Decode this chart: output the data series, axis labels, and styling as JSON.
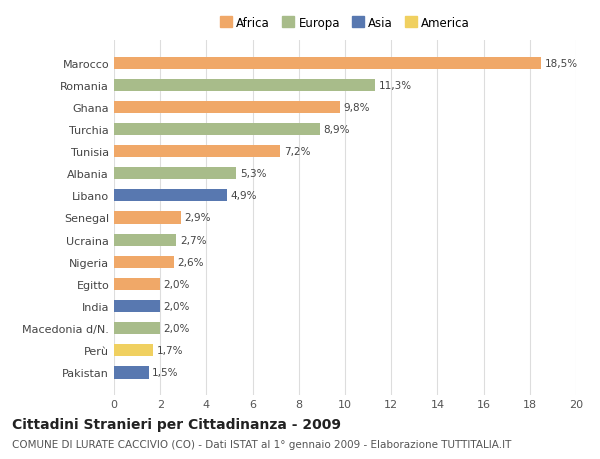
{
  "categories": [
    "Marocco",
    "Romania",
    "Ghana",
    "Turchia",
    "Tunisia",
    "Albania",
    "Libano",
    "Senegal",
    "Ucraina",
    "Nigeria",
    "Egitto",
    "India",
    "Macedonia d/N.",
    "Perù",
    "Pakistan"
  ],
  "values": [
    18.5,
    11.3,
    9.8,
    8.9,
    7.2,
    5.3,
    4.9,
    2.9,
    2.7,
    2.6,
    2.0,
    2.0,
    2.0,
    1.7,
    1.5
  ],
  "continents": [
    "Africa",
    "Europa",
    "Africa",
    "Europa",
    "Africa",
    "Europa",
    "Asia",
    "Africa",
    "Europa",
    "Africa",
    "Africa",
    "Asia",
    "Europa",
    "America",
    "Asia"
  ],
  "labels": [
    "18,5%",
    "11,3%",
    "9,8%",
    "8,9%",
    "7,2%",
    "5,3%",
    "4,9%",
    "2,9%",
    "2,7%",
    "2,6%",
    "2,0%",
    "2,0%",
    "2,0%",
    "1,7%",
    "1,5%"
  ],
  "continent_colors": {
    "Africa": "#f0a868",
    "Europa": "#a8bc8a",
    "Asia": "#5878b0",
    "America": "#f0d060"
  },
  "legend_order": [
    "Africa",
    "Europa",
    "Asia",
    "America"
  ],
  "xlim": [
    0,
    20
  ],
  "xticks": [
    0,
    2,
    4,
    6,
    8,
    10,
    12,
    14,
    16,
    18,
    20
  ],
  "title": "Cittadini Stranieri per Cittadinanza - 2009",
  "subtitle": "COMUNE DI LURATE CACCIVIO (CO) - Dati ISTAT al 1° gennaio 2009 - Elaborazione TUTTITALIA.IT",
  "bg_color": "#ffffff",
  "bar_height": 0.55,
  "label_fontsize": 7.5,
  "title_fontsize": 10,
  "subtitle_fontsize": 7.5,
  "ytick_fontsize": 8,
  "xtick_fontsize": 8,
  "legend_fontsize": 8.5,
  "grid_color": "#dddddd"
}
